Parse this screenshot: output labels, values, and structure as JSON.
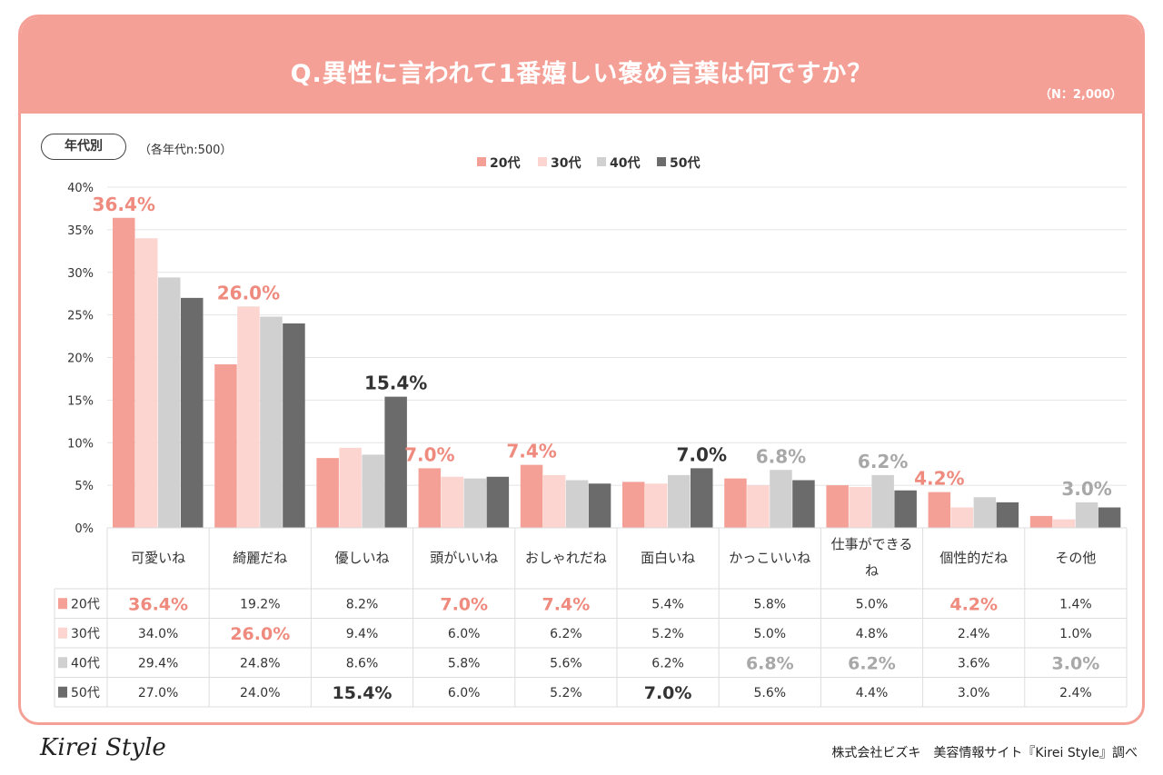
{
  "header": {
    "title": "Q.異性に言われて1番嬉しい褒め言葉は何ですか？",
    "sample_total": "（N：2,000）"
  },
  "filter": {
    "group_label": "年代別",
    "group_note": "（各年代n:500）"
  },
  "colors": {
    "header_bg": "#f5a096",
    "s20": "#f5a096",
    "s30": "#fcd5d1",
    "s40": "#d0d0d0",
    "s50": "#6b6b6b",
    "highlight_pink": "#ef8a7e",
    "highlight_gray": "#a8a8a8",
    "highlight_dark": "#333333"
  },
  "footer": {
    "logo": "Kirei Style",
    "credit": "株式会社ビズキ　美容情報サイト『Kirei Style』調べ"
  },
  "chart_data": {
    "type": "bar",
    "title": "Q.異性に言われて1番嬉しい褒め言葉は何ですか？",
    "ylim": [
      0,
      40
    ],
    "yticks": [
      "0%",
      "5%",
      "10%",
      "15%",
      "20%",
      "25%",
      "30%",
      "35%",
      "40%"
    ],
    "grid": true,
    "legend_position": "top-center",
    "categories": [
      "可愛いね",
      "綺麗だね",
      "優しいね",
      "頭がいいね",
      "おしゃれだね",
      "面白いね",
      "かっこいいね",
      "仕事ができるね",
      "個性的だね",
      "その他"
    ],
    "series": [
      {
        "name": "20代",
        "color": "#f5a096",
        "values": [
          36.4,
          19.2,
          8.2,
          7.0,
          7.4,
          5.4,
          5.8,
          5.0,
          4.2,
          1.4
        ]
      },
      {
        "name": "30代",
        "color": "#fcd5d1",
        "values": [
          34.0,
          26.0,
          9.4,
          6.0,
          6.2,
          5.2,
          5.0,
          4.8,
          2.4,
          1.0
        ]
      },
      {
        "name": "40代",
        "color": "#d0d0d0",
        "values": [
          29.4,
          24.8,
          8.6,
          5.8,
          5.6,
          6.2,
          6.8,
          6.2,
          3.6,
          3.0
        ]
      },
      {
        "name": "50代",
        "color": "#6b6b6b",
        "values": [
          27.0,
          24.0,
          15.4,
          6.0,
          5.2,
          7.0,
          5.6,
          4.4,
          3.0,
          2.4
        ]
      }
    ],
    "highlights": [
      {
        "series": 0,
        "category": 0,
        "label": "36.4%",
        "color": "#ef8a7e"
      },
      {
        "series": 1,
        "category": 1,
        "label": "26.0%",
        "color": "#ef8a7e"
      },
      {
        "series": 3,
        "category": 2,
        "label": "15.4%",
        "color": "#333333"
      },
      {
        "series": 0,
        "category": 3,
        "label": "7.0%",
        "color": "#ef8a7e"
      },
      {
        "series": 0,
        "category": 4,
        "label": "7.4%",
        "color": "#ef8a7e"
      },
      {
        "series": 3,
        "category": 5,
        "label": "7.0%",
        "color": "#333333"
      },
      {
        "series": 2,
        "category": 6,
        "label": "6.8%",
        "color": "#a8a8a8"
      },
      {
        "series": 2,
        "category": 7,
        "label": "6.2%",
        "color": "#a8a8a8"
      },
      {
        "series": 0,
        "category": 8,
        "label": "4.2%",
        "color": "#ef8a7e"
      },
      {
        "series": 2,
        "category": 9,
        "label": "3.0%",
        "color": "#a8a8a8"
      }
    ]
  }
}
